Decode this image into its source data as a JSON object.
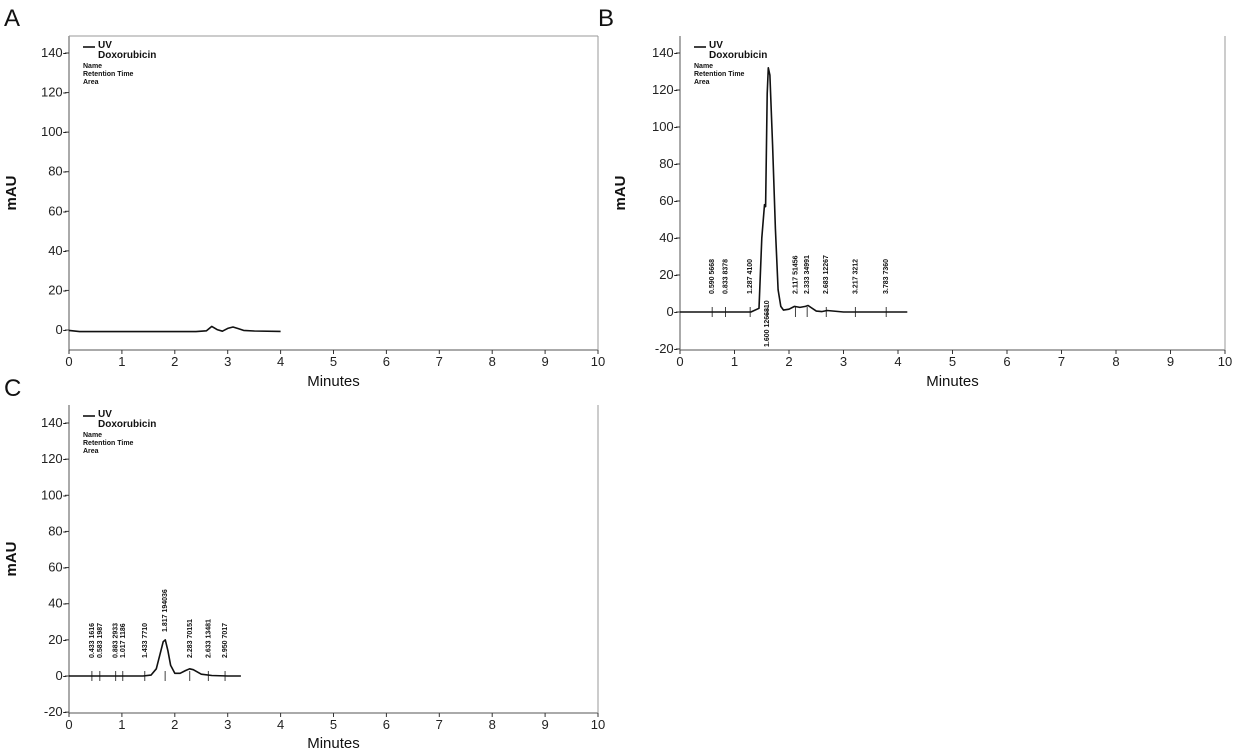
{
  "chart_data": [
    {
      "panel": "A",
      "type": "line",
      "xlabel": "Minutes",
      "ylabel": "mAU",
      "xlim": [
        0,
        10
      ],
      "ylim": [
        -10,
        150
      ],
      "xticks": [
        0,
        1,
        2,
        3,
        4,
        5,
        6,
        7,
        8,
        9,
        10
      ],
      "yticks": [
        0,
        20,
        40,
        60,
        80,
        100,
        120,
        140
      ],
      "legend": {
        "detector": "UV",
        "compound": "Doxorubicin",
        "fields": [
          "Name",
          "Retention Time",
          "Area"
        ]
      },
      "series": [
        {
          "x": [
            0,
            0.2,
            0.5,
            1,
            1.5,
            2,
            2.4,
            2.6,
            2.7,
            2.8,
            2.9,
            3.0,
            3.1,
            3.2,
            3.3,
            3.5,
            4.0
          ],
          "y": [
            -0.2,
            -0.8,
            -0.8,
            -0.8,
            -0.8,
            -0.8,
            -0.8,
            -0.4,
            1.8,
            0.2,
            -0.6,
            0.8,
            1.5,
            0.7,
            -0.2,
            -0.5,
            -0.7
          ]
        }
      ],
      "peak_labels": []
    },
    {
      "panel": "B",
      "type": "line",
      "xlabel": "Minutes",
      "ylabel": "mAU",
      "xlim": [
        0,
        10
      ],
      "ylim": [
        -20,
        150
      ],
      "xticks": [
        0,
        1,
        2,
        3,
        4,
        5,
        6,
        7,
        8,
        9,
        10
      ],
      "yticks": [
        -20,
        0,
        20,
        40,
        60,
        80,
        100,
        120,
        140
      ],
      "legend": {
        "detector": "UV",
        "compound": "Doxorubicin",
        "fields": [
          "Name",
          "Retention Time",
          "Area"
        ]
      },
      "series": [
        {
          "x": [
            0,
            0.2,
            0.5,
            1.0,
            1.3,
            1.45,
            1.5,
            1.55,
            1.57,
            1.6,
            1.62,
            1.65,
            1.7,
            1.75,
            1.8,
            1.85,
            1.9,
            2.0,
            2.1,
            2.2,
            2.3,
            2.35,
            2.4,
            2.5,
            2.6,
            2.7,
            3.0,
            3.5,
            4.0,
            4.17
          ],
          "y": [
            0,
            0,
            0,
            0,
            0,
            2,
            40,
            58,
            57,
            118,
            132,
            128,
            90,
            45,
            12,
            3,
            1,
            1.5,
            3,
            2.5,
            3,
            3.5,
            2.5,
            0.5,
            0.2,
            0.8,
            0,
            0,
            0,
            0
          ]
        }
      ],
      "peak_labels": [
        {
          "text": "0.590  5668",
          "rt": 0.59
        },
        {
          "text": "0.833  8378",
          "rt": 0.833
        },
        {
          "text": "1.287  4100",
          "rt": 1.287
        },
        {
          "text": "1.600  1266810",
          "rt": 1.6
        },
        {
          "text": "2.117  51456",
          "rt": 2.117
        },
        {
          "text": "2.333  34991",
          "rt": 2.333
        },
        {
          "text": "2.683  12267",
          "rt": 2.683
        },
        {
          "text": "3.217  3212",
          "rt": 3.217
        },
        {
          "text": "3.783  7360",
          "rt": 3.783
        }
      ]
    },
    {
      "panel": "C",
      "type": "line",
      "xlabel": "Minutes",
      "ylabel": "mAU",
      "xlim": [
        0,
        10
      ],
      "ylim": [
        -20,
        150
      ],
      "xticks": [
        0,
        1,
        2,
        3,
        4,
        5,
        6,
        7,
        8,
        9,
        10
      ],
      "yticks": [
        -20,
        0,
        20,
        40,
        60,
        80,
        100,
        120,
        140
      ],
      "legend": {
        "detector": "UV",
        "compound": "Doxorubicin",
        "fields": [
          "Name",
          "Retention Time",
          "Area"
        ]
      },
      "series": [
        {
          "x": [
            0,
            0.5,
            1.0,
            1.4,
            1.55,
            1.65,
            1.72,
            1.78,
            1.82,
            1.87,
            1.92,
            2.0,
            2.1,
            2.2,
            2.28,
            2.35,
            2.5,
            2.7,
            3.0,
            3.25
          ],
          "y": [
            0,
            0,
            0,
            0,
            0.5,
            4,
            12,
            19,
            20,
            14,
            6,
            1.5,
            1.5,
            3,
            4,
            3.5,
            1,
            0.3,
            0,
            0
          ]
        }
      ],
      "peak_labels": [
        {
          "text": "0.433  1616",
          "rt": 0.433
        },
        {
          "text": "0.583  1987",
          "rt": 0.583
        },
        {
          "text": "0.883  2933",
          "rt": 0.883
        },
        {
          "text": "1.017  1186",
          "rt": 1.017
        },
        {
          "text": "1.433  7710",
          "rt": 1.433
        },
        {
          "text": "1.817  194036",
          "rt": 1.817
        },
        {
          "text": "2.283  70151",
          "rt": 2.283
        },
        {
          "text": "2.633  13481",
          "rt": 2.633
        },
        {
          "text": "2.950  7017",
          "rt": 2.95
        }
      ]
    }
  ]
}
